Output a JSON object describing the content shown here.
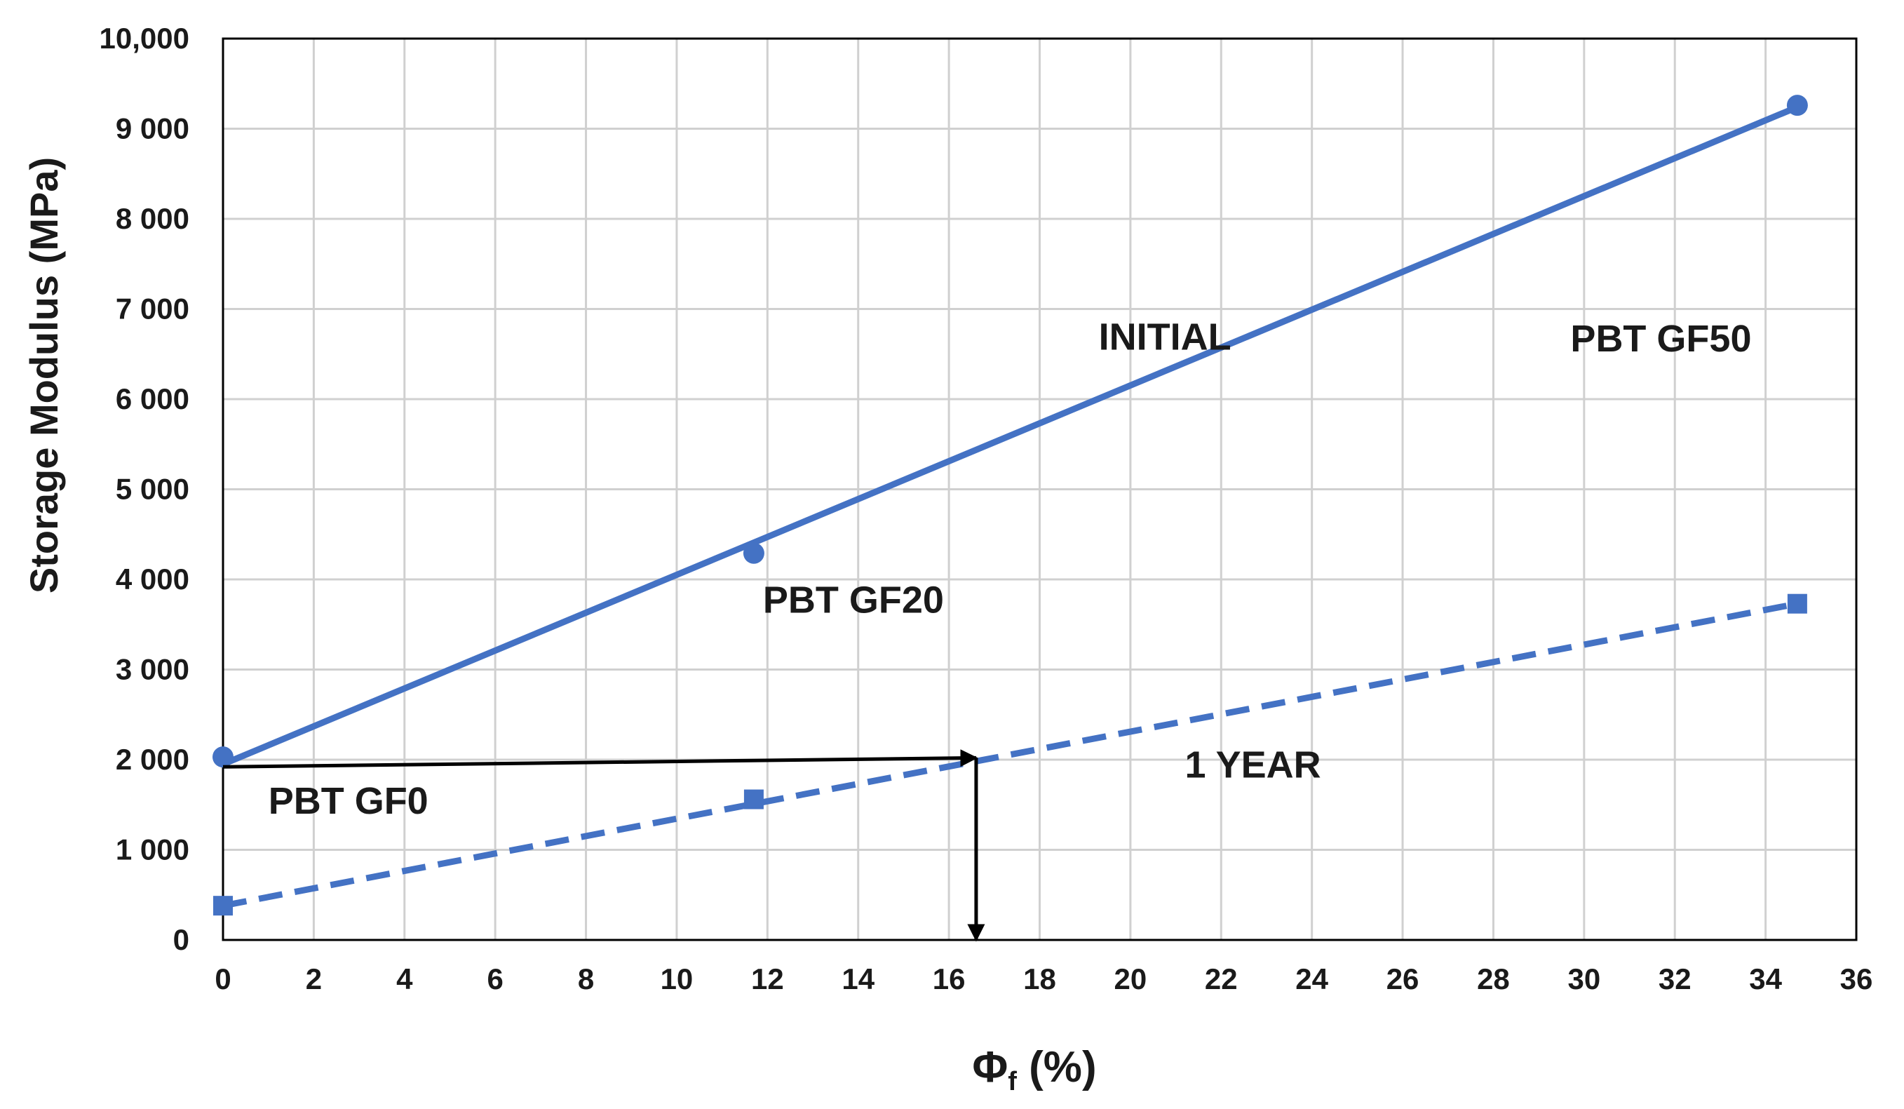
{
  "chart_data": {
    "type": "line",
    "title": "",
    "xlabel_main": "Φ",
    "xlabel_sub": "f",
    "xlabel_tail": " (%)",
    "ylabel": "Storage Modulus (MPa)",
    "xlim": [
      0,
      36
    ],
    "ylim": [
      0,
      10000
    ],
    "x_ticks": [
      0,
      2,
      4,
      6,
      8,
      10,
      12,
      14,
      16,
      18,
      20,
      22,
      24,
      26,
      28,
      30,
      32,
      34,
      36
    ],
    "x_tick_labels": [
      "0",
      "2",
      "4",
      "6",
      "8",
      "10",
      "12",
      "14",
      "16",
      "18",
      "20",
      "22",
      "24",
      "26",
      "28",
      "30",
      "32",
      "34",
      "36"
    ],
    "y_ticks": [
      0,
      1000,
      2000,
      3000,
      4000,
      5000,
      6000,
      7000,
      8000,
      9000,
      10000
    ],
    "y_tick_labels": [
      "0",
      "1 000",
      "2 000",
      "3 000",
      "4 000",
      "5 000",
      "6 000",
      "7 000",
      "8 000",
      "9 000",
      "10,000"
    ],
    "grid": true,
    "legend": "none",
    "series": [
      {
        "name": "INITIAL",
        "marker": "circle",
        "line_style": "solid",
        "color": "#4472C4",
        "points": [
          {
            "x": 0,
            "y": 2030
          },
          {
            "x": 11.7,
            "y": 4290
          },
          {
            "x": 34.7,
            "y": 9260
          }
        ],
        "trendline": {
          "x_start": 0,
          "y_start": 1950,
          "x_end": 34.7,
          "y_end": 9240
        }
      },
      {
        "name": "1 YEAR",
        "marker": "square",
        "line_style": "dashed",
        "color": "#4472C4",
        "points": [
          {
            "x": 0,
            "y": 380
          },
          {
            "x": 11.7,
            "y": 1560
          },
          {
            "x": 34.7,
            "y": 3730
          }
        ],
        "trendline": {
          "x_start": 0,
          "y_start": 380,
          "x_end": 34.7,
          "y_end": 3730
        }
      }
    ],
    "arrows": [
      {
        "name": "horizontal-arrow",
        "from": {
          "x": 0,
          "y": 1920
        },
        "to": {
          "x": 16.6,
          "y": 2020
        }
      },
      {
        "name": "vertical-arrow",
        "from": {
          "x": 16.6,
          "y": 2020
        },
        "to": {
          "x": 16.6,
          "y": 0
        }
      }
    ],
    "annotations": [
      {
        "name": "annotation-initial",
        "text": "INITIAL",
        "x": 19.3,
        "y": 6550
      },
      {
        "name": "annotation-gf50",
        "text": "PBT GF50",
        "x": 29.7,
        "y": 6530
      },
      {
        "name": "annotation-gf20",
        "text": "PBT GF20",
        "x": 11.9,
        "y": 3630
      },
      {
        "name": "annotation-1-year",
        "text": "1 YEAR",
        "x": 21.2,
        "y": 1800
      },
      {
        "name": "annotation-gf0",
        "text": "PBT GF0",
        "x": 1.0,
        "y": 1400
      }
    ]
  }
}
